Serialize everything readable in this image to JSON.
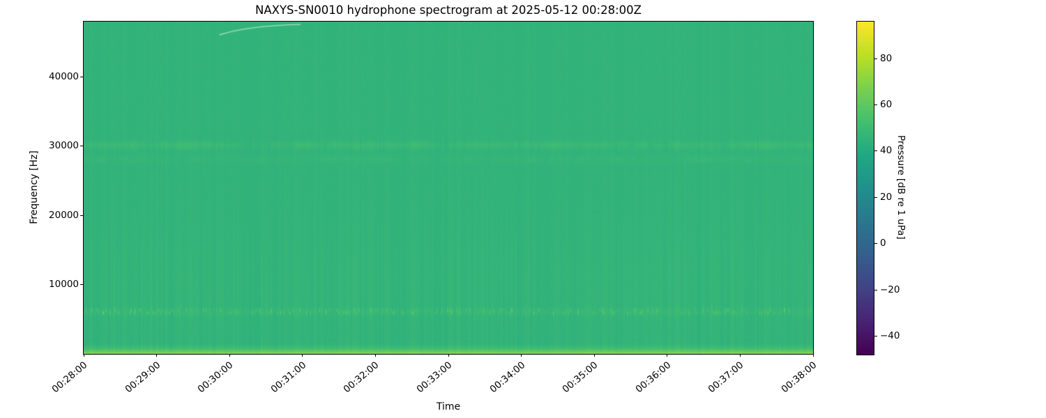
{
  "figure": {
    "title": "NAXYS-SN0010 hydrophone spectrogram at 2025-05-12 00:28:00Z",
    "xlabel": "Time",
    "ylabel": "Frequency [Hz]",
    "background_color": "#ffffff",
    "text_color": "#000000",
    "dominant_plot_color": "#2fb47d"
  },
  "chart_data": {
    "type": "heatmap",
    "subtype": "spectrogram",
    "title": "NAXYS-SN0010 hydrophone spectrogram at 2025-05-12 00:28:00Z",
    "xlabel": "Time",
    "ylabel": "Frequency [Hz]",
    "x_tick_labels": [
      "00:28:00",
      "00:29:00",
      "00:30:00",
      "00:31:00",
      "00:32:00",
      "00:33:00",
      "00:34:00",
      "00:35:00",
      "00:36:00",
      "00:37:00",
      "00:38:00"
    ],
    "x_range_seconds": [
      0,
      600
    ],
    "y_ticks": [
      10000,
      20000,
      30000,
      40000
    ],
    "y_tick_labels": [
      "10000",
      "20000",
      "30000",
      "40000"
    ],
    "freq_range_hz": [
      0,
      48000
    ],
    "colormap": "viridis",
    "grid": false,
    "colorbar": {
      "label": "Pressure [dB re 1 uPa]",
      "ticks": [
        80,
        60,
        40,
        20,
        0,
        -20,
        -40
      ],
      "tick_labels": [
        "80",
        "60",
        "40",
        "20",
        "0",
        "−20",
        "−40"
      ],
      "vmin": -48,
      "vmax": 96,
      "position": "right"
    },
    "background_level_db": 45.5,
    "features": {
      "description": "Broadband ambient noise near 45 dB with faint vertical amplitude striations across all frequencies; bright low-frequency energy below ~1 kHz reaching ~70 dB along the bottom edge; a speckled tonal band near 6 kHz with bursts up to ~65 dB; weaker diffuse tonal bands near 30 kHz and 28 kHz; a faint rising whistle arc from ~46.1 kHz to ~47.6 kHz between ~00:29:52 and ~00:30:58.",
      "bands": [
        {
          "name": "low-frequency-noise",
          "freq_hz": [
            0,
            2000
          ],
          "peak_db": 70
        },
        {
          "name": "speckle-band-6khz",
          "center_hz": 6050,
          "halfwidth_hz": 500,
          "peak_db": 65
        },
        {
          "name": "tonal-band-30khz",
          "center_hz": 30150,
          "halfwidth_hz": 600,
          "level_db": 49
        },
        {
          "name": "tonal-band-28khz",
          "center_hz": 28100,
          "halfwidth_hz": 550,
          "level_db": 47
        }
      ],
      "chirp_arc": {
        "t_start_s": 112,
        "f_start_hz": 46100,
        "t_end_s": 178,
        "f_end_hz": 47600
      }
    },
    "viridis_anchors": [
      [
        68,
        1,
        84
      ],
      [
        72,
        36,
        117
      ],
      [
        65,
        68,
        135
      ],
      [
        53,
        95,
        141
      ],
      [
        42,
        120,
        142
      ],
      [
        33,
        145,
        140
      ],
      [
        34,
        168,
        132
      ],
      [
        68,
        191,
        112
      ],
      [
        122,
        209,
        81
      ],
      [
        189,
        223,
        38
      ],
      [
        253,
        231,
        37
      ]
    ]
  }
}
